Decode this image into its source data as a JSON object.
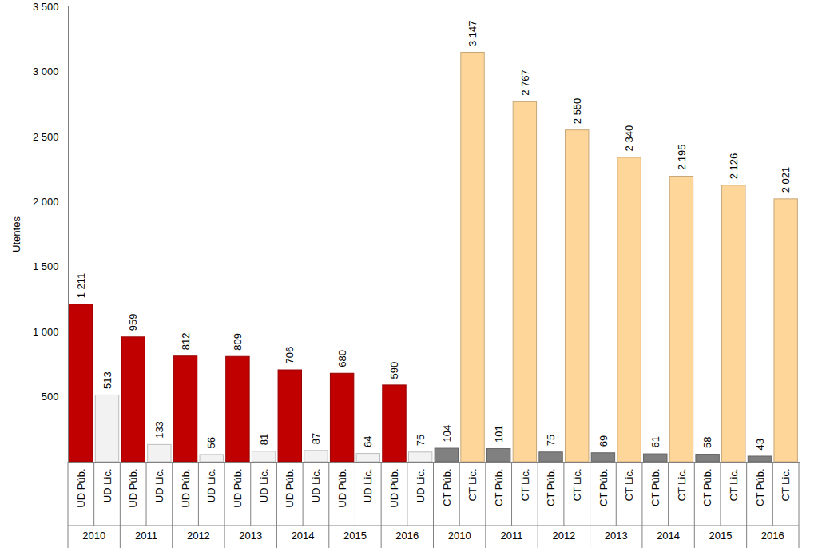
{
  "chart_data": {
    "type": "bar",
    "y_label": "Utentes",
    "categories": [
      "UD Púb.",
      "UD Lic.",
      "UD Púb.",
      "UD Lic.",
      "UD Púb.",
      "UD Lic.",
      "UD Púb.",
      "UD Lic.",
      "UD Púb.",
      "UD Lic.",
      "UD Púb.",
      "UD Lic.",
      "UD Púb.",
      "UD Lic.",
      "CT Púb.",
      "CT Lic.",
      "CT Púb.",
      "CT Lic.",
      "CT Púb.",
      "CT Lic.",
      "CT Púb.",
      "CT Lic.",
      "CT Púb.",
      "CT Lic.",
      "CT Púb.",
      "CT Lic.",
      "CT Púb.",
      "CT Lic."
    ],
    "groups": [
      "2010",
      "2010",
      "2011",
      "2011",
      "2012",
      "2012",
      "2013",
      "2013",
      "2014",
      "2014",
      "2015",
      "2015",
      "2016",
      "2016",
      "2010",
      "2010",
      "2011",
      "2011",
      "2012",
      "2012",
      "2013",
      "2013",
      "2014",
      "2014",
      "2015",
      "2015",
      "2016",
      "2016"
    ],
    "values": [
      1211,
      513,
      959,
      133,
      812,
      56,
      809,
      81,
      706,
      87,
      680,
      64,
      590,
      75,
      104,
      3147,
      101,
      2767,
      75,
      2550,
      69,
      2340,
      61,
      2195,
      58,
      2126,
      43,
      2021
    ],
    "value_labels": [
      "1 211",
      "513",
      "959",
      "133",
      "812",
      "56",
      "809",
      "81",
      "706",
      "87",
      "680",
      "64",
      "590",
      "75",
      "104",
      "3 147",
      "101",
      "2 767",
      "75",
      "2 550",
      "69",
      "2 340",
      "61",
      "2 195",
      "58",
      "2 126",
      "43",
      "2 021"
    ],
    "colors": [
      "#c00000",
      "#f2f2f2",
      "#c00000",
      "#f2f2f2",
      "#c00000",
      "#f2f2f2",
      "#c00000",
      "#f2f2f2",
      "#c00000",
      "#f2f2f2",
      "#c00000",
      "#f2f2f2",
      "#c00000",
      "#f2f2f2",
      "#808080",
      "#ffd699",
      "#808080",
      "#ffd699",
      "#808080",
      "#ffd699",
      "#808080",
      "#ffd699",
      "#808080",
      "#ffd699",
      "#808080",
      "#ffd699",
      "#808080",
      "#ffd699"
    ],
    "ylim": [
      0,
      3500
    ],
    "yticks": [
      500,
      {
        "value": 1000,
        "label": "1 000"
      },
      {
        "value": 1500,
        "label": "1 500"
      },
      {
        "value": 2000,
        "label": "2 000"
      },
      {
        "value": 2500,
        "label": "2 500"
      },
      {
        "value": 3000,
        "label": "3 000"
      },
      {
        "value": 3500,
        "label": "3 500"
      }
    ],
    "grid": false,
    "data_labels": true
  }
}
